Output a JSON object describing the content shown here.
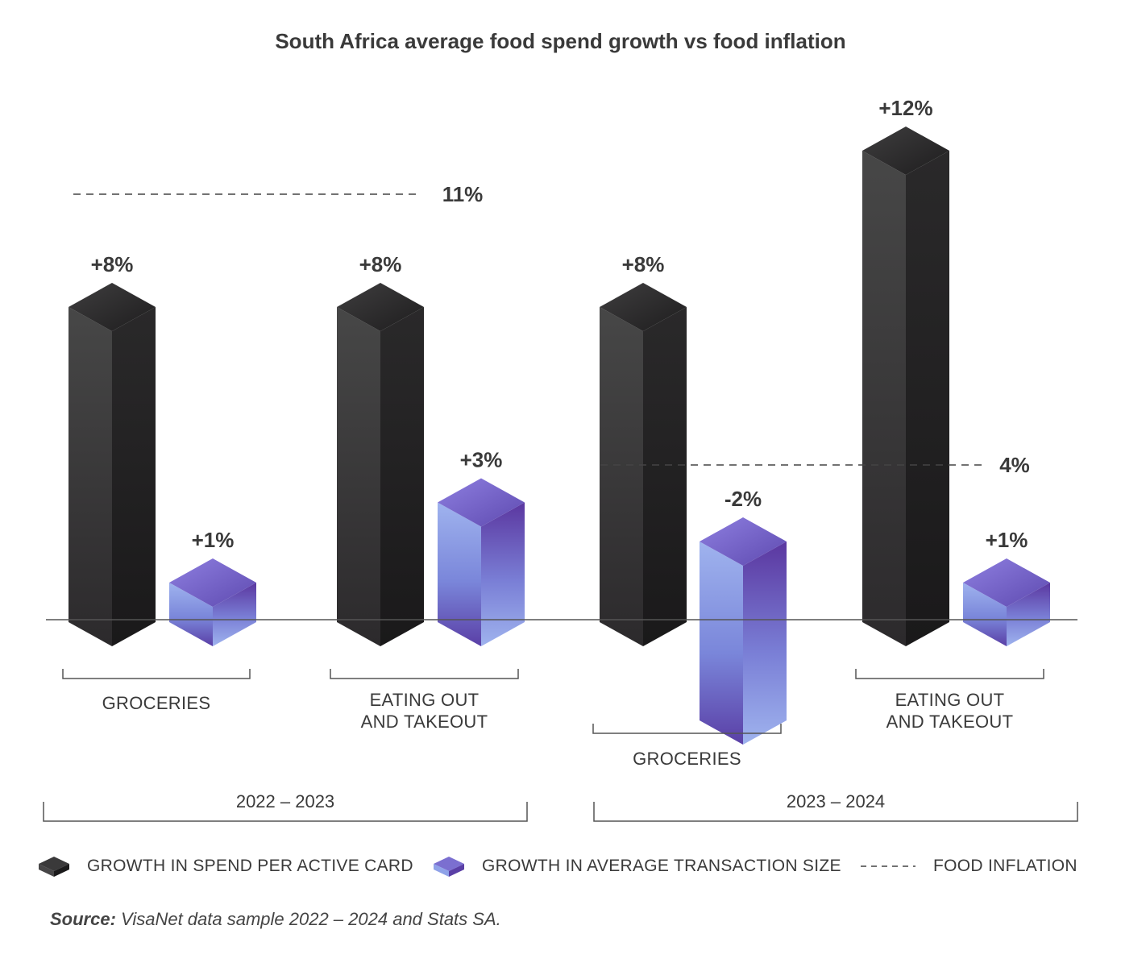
{
  "chart_data": {
    "type": "bar",
    "title": "South Africa average food spend growth vs food inflation",
    "groups": [
      {
        "period": "2022 – 2023",
        "food_inflation": 11,
        "food_inflation_label": "11%",
        "categories": [
          {
            "name": "GROCERIES",
            "spend_per_card": 8,
            "spend_label": "+8%",
            "avg_transaction": 1,
            "avg_label": "+1%"
          },
          {
            "name": "EATING OUT AND TAKEOUT",
            "spend_per_card": 8,
            "spend_label": "+8%",
            "avg_transaction": 3,
            "avg_label": "+3%"
          }
        ]
      },
      {
        "period": "2023 – 2024",
        "food_inflation": 4,
        "food_inflation_label": "4%",
        "categories": [
          {
            "name": "GROCERIES",
            "spend_per_card": 8,
            "spend_label": "+8%",
            "avg_transaction": -2,
            "avg_label": "-2%"
          },
          {
            "name": "EATING OUT AND TAKEOUT",
            "spend_per_card": 12,
            "spend_label": "+12%",
            "avg_transaction": 1,
            "avg_label": "+1%"
          }
        ]
      }
    ],
    "series": [
      {
        "name": "GROWTH IN SPEND PER ACTIVE CARD",
        "color": "#2b2a2b"
      },
      {
        "name": "GROWTH IN AVERAGE TRANSACTION SIZE",
        "color": "#7b6fd0"
      },
      {
        "name": "FOOD INFLATION",
        "color": "#444444"
      }
    ]
  },
  "legend": {
    "spend": "GROWTH IN SPEND PER ACTIVE CARD",
    "avg": "GROWTH IN AVERAGE TRANSACTION SIZE",
    "inflation": "FOOD INFLATION"
  },
  "source": {
    "label": "Source:",
    "text": "VisaNet data sample 2022 – 2024 and Stats SA."
  }
}
